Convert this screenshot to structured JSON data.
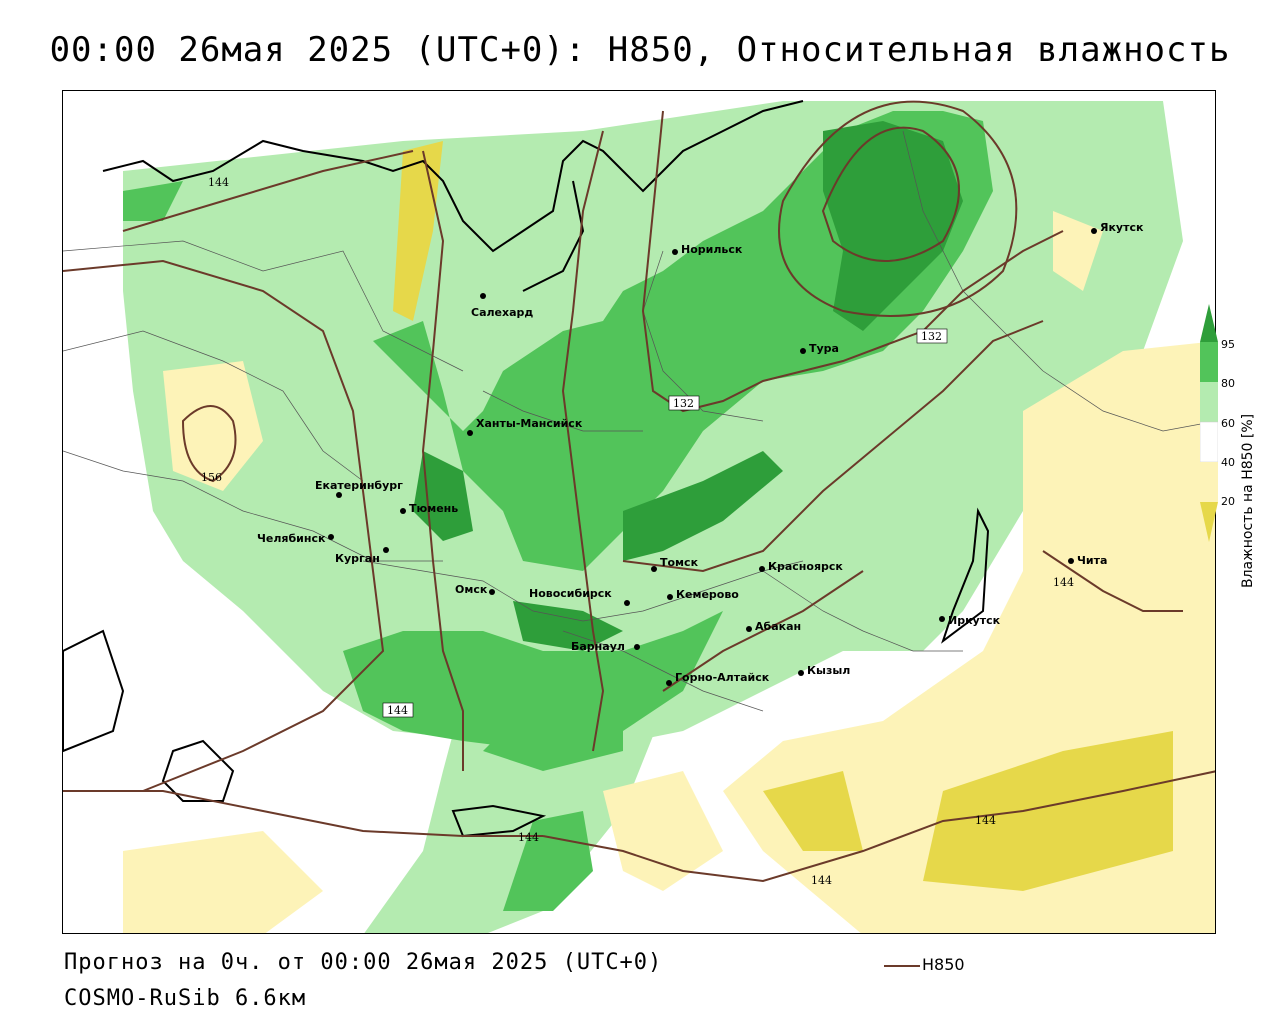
{
  "title": "00:00 26мая 2025 (UTC+0): H850, Относительная влажность",
  "footer": {
    "forecast": "Прогноз на 0ч. от 00:00 26мая 2025 (UTC+0)",
    "model": "COSMO-RuSib 6.6км"
  },
  "legend": {
    "line_label": "H850",
    "line_color": "#6b3a2a"
  },
  "colorbar": {
    "title": "Влажность на H850 [%]",
    "ticks": [
      "95",
      "80",
      "60",
      "40",
      "20"
    ],
    "colors": {
      "c95": "#2e9e3a",
      "c80": "#52c45a",
      "c60": "#b4ebb0",
      "c40": "#ffffff",
      "c20": "#fdf3b8",
      "c0": "#e6d84a"
    }
  },
  "cities": [
    {
      "name": "Якутск"
    },
    {
      "name": "Норильск"
    },
    {
      "name": "Салехард"
    },
    {
      "name": "Тура"
    },
    {
      "name": "Ханты-Мансийск"
    },
    {
      "name": "Екатеринбург"
    },
    {
      "name": "Тюмень"
    },
    {
      "name": "Челябинск"
    },
    {
      "name": "Курган"
    },
    {
      "name": "Омск"
    },
    {
      "name": "Новосибирск"
    },
    {
      "name": "Томск"
    },
    {
      "name": "Кемерово"
    },
    {
      "name": "Красноярск"
    },
    {
      "name": "Барнаул"
    },
    {
      "name": "Абакан"
    },
    {
      "name": "Горно-Алтайск"
    },
    {
      "name": "Кызыл"
    },
    {
      "name": "Иркутск"
    },
    {
      "name": "Чита"
    }
  ],
  "contour_labels": [
    "132",
    "132",
    "144",
    "144",
    "144",
    "144",
    "144",
    "156",
    "144"
  ]
}
